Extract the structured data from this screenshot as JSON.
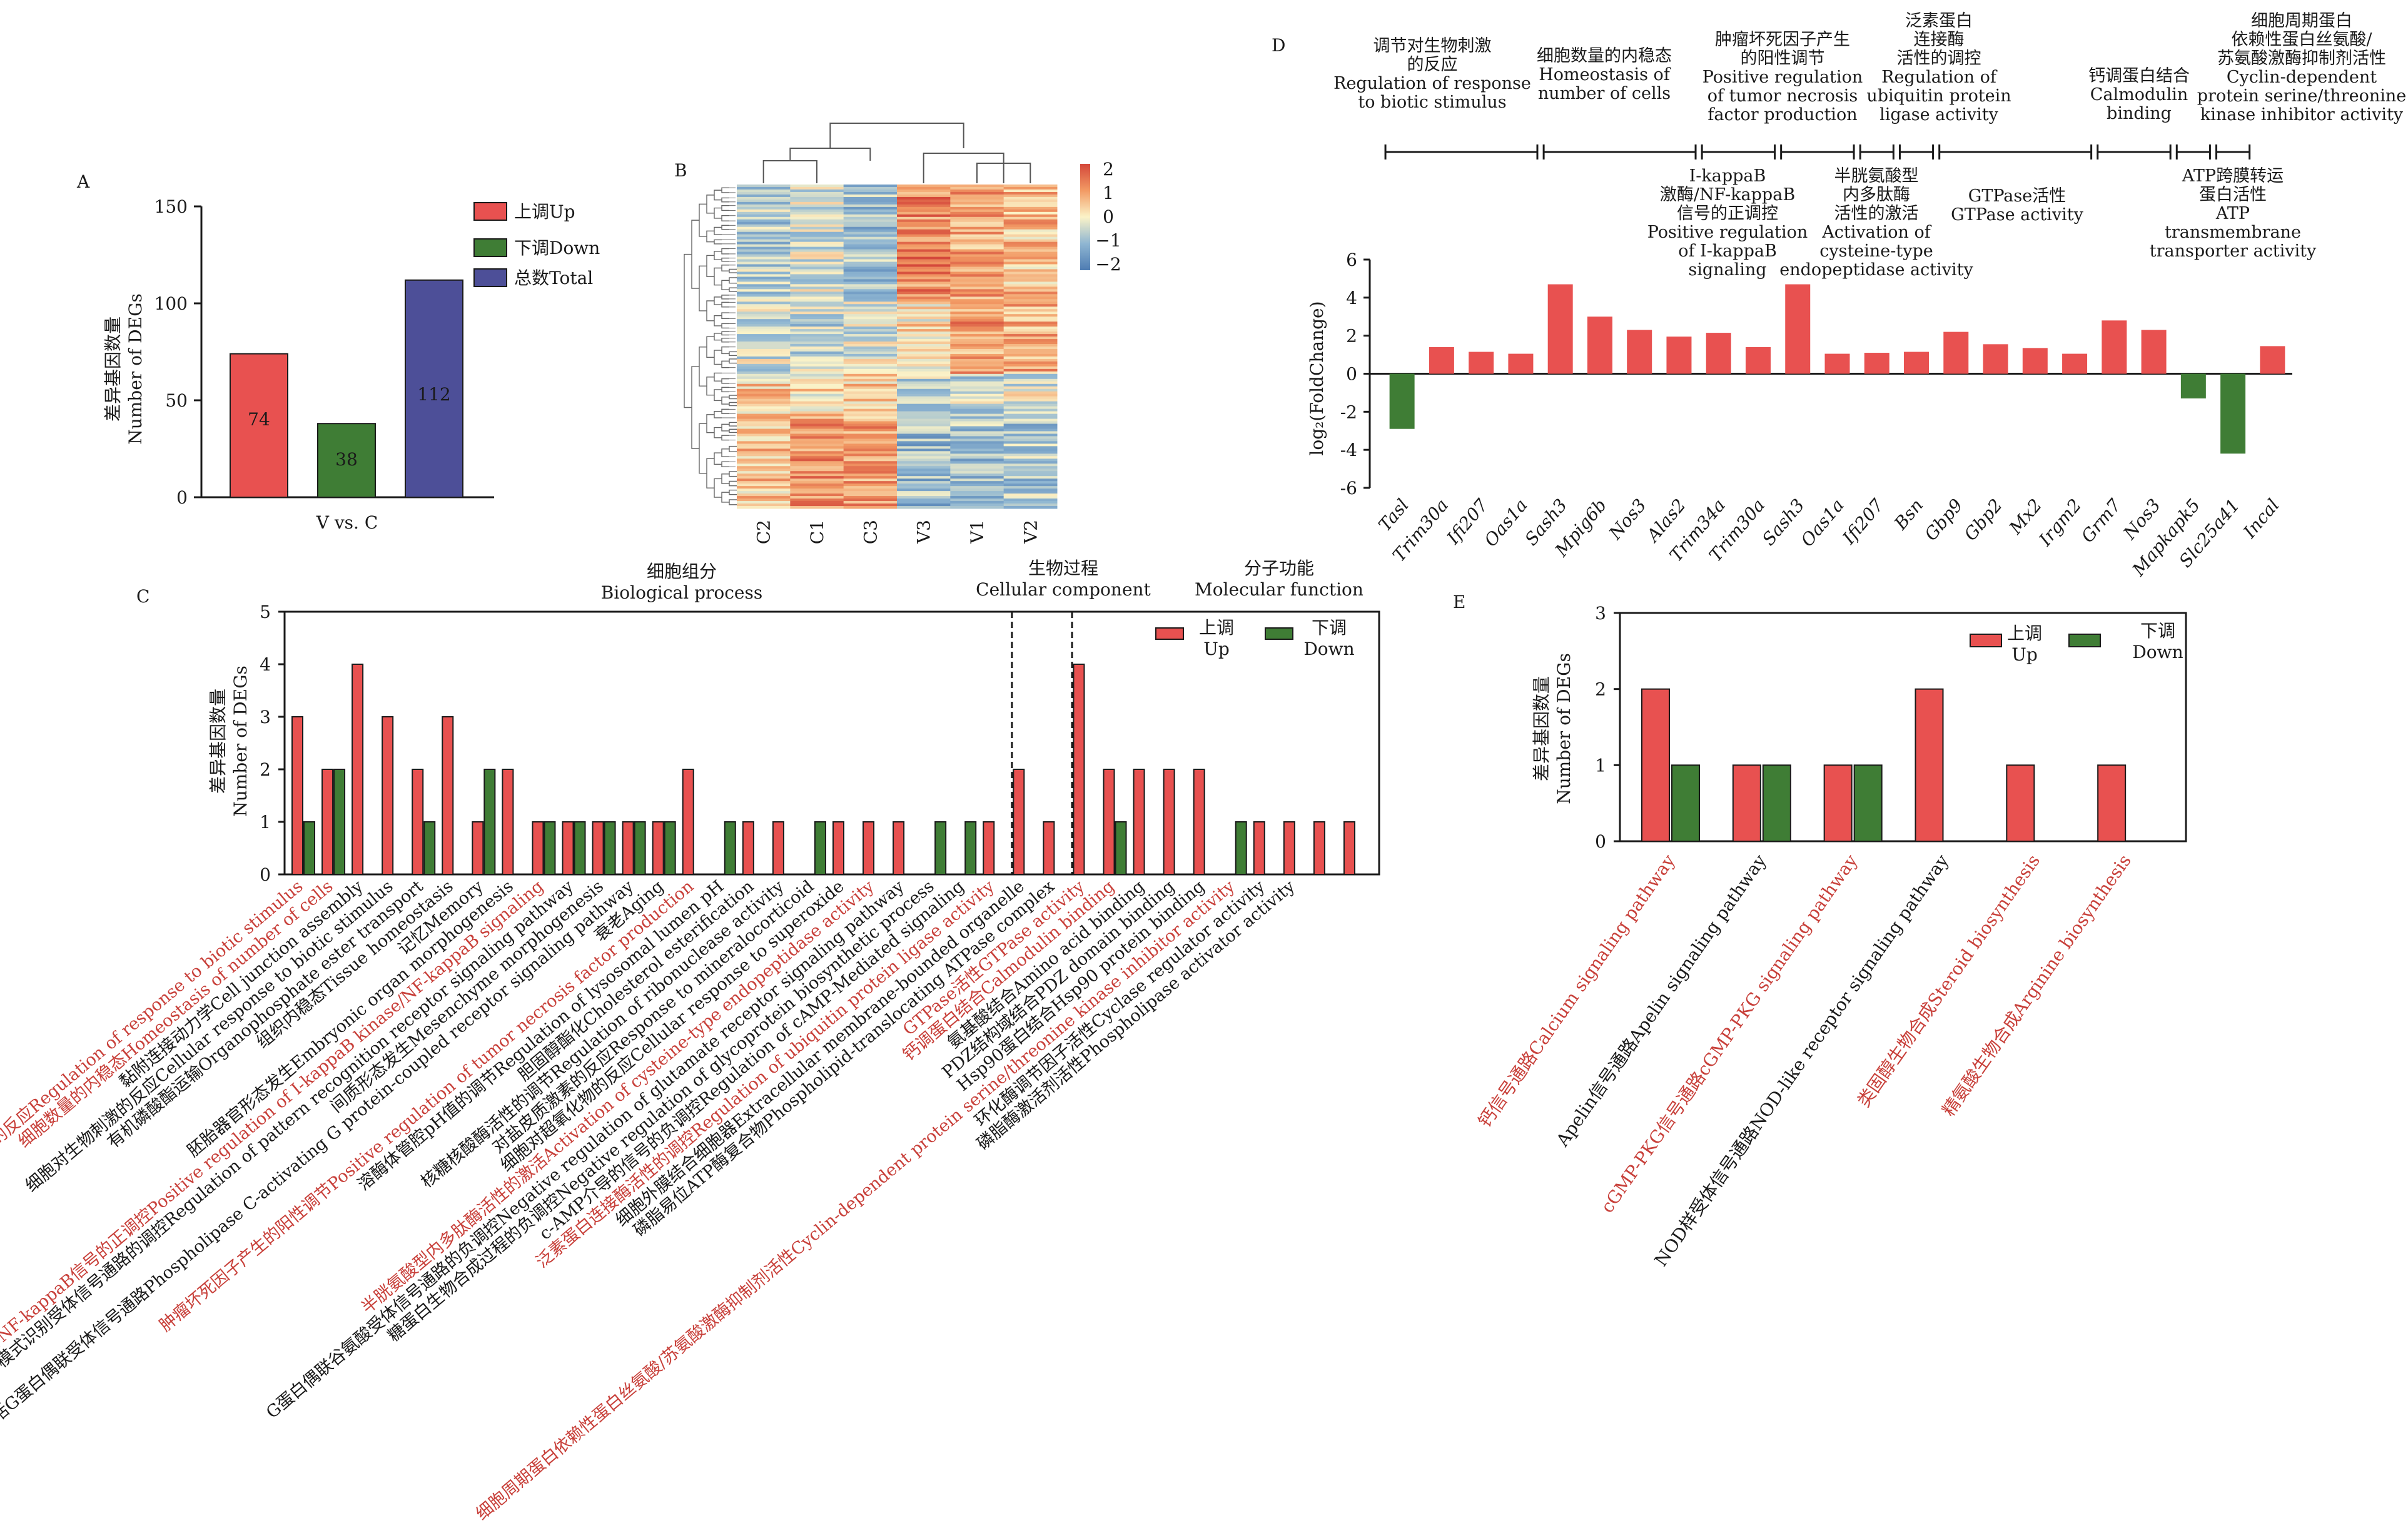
{
  "colors": {
    "up": "#e85150",
    "down": "#3f7d35",
    "total": "#4d4f98",
    "red_text": "#c8403a",
    "axis": "#1a1a1a"
  },
  "panels": {
    "A": {
      "label": "A",
      "ylabel_cn": "差异基因数量",
      "ylabel_en": "Number of DEGs",
      "xlabel": "V vs. C",
      "legend": [
        "上调Up",
        "下调Down",
        "总数Total"
      ]
    },
    "B": {
      "label": "B",
      "legend_ticks": [
        "2",
        "1",
        "0",
        "−1",
        "−2"
      ]
    },
    "C": {
      "label": "C",
      "ylabel_cn": "差异基因数量",
      "ylabel_en": "Number of DEGs",
      "group_titles": [
        {
          "cn": "细胞组分",
          "en": "Biological process"
        },
        {
          "cn": "生物过程",
          "en": "Cellular component"
        },
        {
          "cn": "分子功能",
          "en": "Molecular function"
        }
      ],
      "legend_up": [
        "上调",
        "Up"
      ],
      "legend_down": [
        "下调",
        "Down"
      ]
    },
    "D": {
      "label": "D",
      "ylabel": "log₂(FoldChange)",
      "annotations_top": [
        [
          "调节对生物刺激",
          "的反应",
          "Regulation of response",
          "to biotic stimulus"
        ],
        [
          "细胞数量的内稳态",
          "Homeostasis of",
          "number of cells"
        ],
        [
          "肿瘤坏死因子产生",
          "的阳性调节",
          "Positive regulation",
          "of tumor necrosis",
          "factor production"
        ],
        [
          "泛素蛋白",
          "连接酶",
          "活性的调控",
          "Regulation of",
          "ubiquitin protein",
          "ligase activity"
        ],
        [
          "钙调蛋白结合",
          "Calmodulin",
          "binding"
        ],
        [
          "细胞周期蛋白",
          "依赖性蛋白丝氨酸/",
          "苏氨酸激酶抑制剂活性",
          "Cyclin-dependent",
          "protein serine/threonine",
          "kinase inhibitor activity"
        ]
      ],
      "annotations_bottom": [
        [
          "Ⅰ-kappaB",
          "激酶/NF-kappaB",
          "信号的正调控",
          "Positive regulation",
          "of Ⅰ-kappaB",
          "signaling"
        ],
        [
          "半胱氨酸型",
          "内多肽酶",
          "活性的激活",
          "Activation of",
          "cysteine-type",
          "endopeptidase activity"
        ],
        [
          "GTPase活性",
          "GTPase activity"
        ],
        [
          "ATP跨膜转运",
          "蛋白活性",
          "ATP",
          "transmembrane",
          "transporter activity"
        ]
      ]
    },
    "E": {
      "label": "E",
      "ylabel_cn": "差异基因数量",
      "ylabel_en": "Number of DEGs",
      "legend_up": [
        "上调",
        "Up"
      ],
      "legend_down": [
        "下调",
        "Down"
      ]
    }
  },
  "chart_data": [
    {
      "panel": "A",
      "type": "bar",
      "categories": [
        "上调Up",
        "下调Down",
        "总数Total"
      ],
      "values": [
        74,
        38,
        112
      ],
      "value_labels": [
        "74",
        "38",
        "112"
      ],
      "xlabel": "V vs. C",
      "ylabel": "差异基因数量 Number of DEGs",
      "ylim": [
        0,
        150
      ],
      "yticks": [
        0,
        50,
        100,
        150
      ]
    },
    {
      "panel": "B",
      "type": "heatmap",
      "columns": [
        "C2",
        "C1",
        "C3",
        "V3",
        "V1",
        "V2"
      ],
      "legend_range": [
        -2,
        2
      ]
    },
    {
      "panel": "C",
      "type": "bar",
      "ylim": [
        0,
        5
      ],
      "yticks": [
        0,
        1,
        2,
        3,
        4,
        5
      ],
      "categories": [
        {
          "en": "Regulation of response to biotic stimulus",
          "cn": "调节对生物刺激的反应",
          "red": true,
          "up": 3,
          "down": 1
        },
        {
          "en": "Homeostasis of number of cells",
          "cn": "细胞数量的内稳态",
          "red": true,
          "up": 2,
          "down": 2
        },
        {
          "en": "Cell junction assembly",
          "cn": "黏附连接动力学",
          "red": false,
          "up": 4,
          "down": 0
        },
        {
          "en": "Cellular response to biotic stimulus",
          "cn": "细胞对生物刺激的反应",
          "red": false,
          "up": 3,
          "down": 0
        },
        {
          "en": "Organophosphate ester transport",
          "cn": "有机磷酸酯运输",
          "red": false,
          "up": 2,
          "down": 1
        },
        {
          "en": "Tissue homeostasis",
          "cn": "组织内稳态",
          "red": false,
          "up": 3,
          "down": 0
        },
        {
          "en": "Memory",
          "cn": "记忆",
          "red": false,
          "up": 1,
          "down": 2
        },
        {
          "en": "Embryonic organ morphogenesis",
          "cn": "胚胎器官形态发生",
          "red": false,
          "up": 2,
          "down": 0
        },
        {
          "en": "Positive regulation of Ⅰ-kappaB kinase/NF-kappaB signaling",
          "cn": "Ⅰ-kappaB激酶/NF-kappaB信号的正调控",
          "red": true,
          "up": 1,
          "down": 1
        },
        {
          "en": "Regulation of pattern recognition receptor signaling pathway",
          "cn": "模式识别受体信号通路的调控",
          "red": false,
          "up": 1,
          "down": 1
        },
        {
          "en": "Mesenchyme morphogenesis",
          "cn": "间质形态发生",
          "red": false,
          "up": 1,
          "down": 1
        },
        {
          "en": "Phospholipase C-activating G protein-coupled receptor signaling pathway",
          "cn": "磷脂酶C激活G蛋白偶联受体信号通路",
          "red": false,
          "up": 1,
          "down": 1
        },
        {
          "en": "Aging",
          "cn": "衰老",
          "red": false,
          "up": 1,
          "down": 1
        },
        {
          "en": "Positive regulation of tumor necrosis factor production",
          "cn": "肿瘤坏死因子产生的阳性调节",
          "red": true,
          "up": 2,
          "down": 0
        },
        {
          "en": "Regulation of lysosomal lumen pH",
          "cn": "溶酶体管腔pH值的调节",
          "red": false,
          "up": 0,
          "down": 1
        },
        {
          "en": "Cholesterol esterification",
          "cn": "胆固醇酯化",
          "red": false,
          "up": 1,
          "down": 0
        },
        {
          "en": "Regulation of ribonuclease activity",
          "cn": "核糖核酸酶活性的调节",
          "red": false,
          "up": 1,
          "down": 0
        },
        {
          "en": "Response to mineralocorticoid",
          "cn": "对盐皮质激素的反应",
          "red": false,
          "up": 0,
          "down": 1
        },
        {
          "en": "Cellular response to superoxide",
          "cn": "细胞对超氧化物的反应",
          "red": false,
          "up": 1,
          "down": 0
        },
        {
          "en": "Activation of cysteine-type endopeptidase activity",
          "cn": "半胱氨酸型内多肽酶活性的激活",
          "red": true,
          "up": 1,
          "down": 0
        },
        {
          "en": "Negative regulation of glutamate receptor signaling pathway",
          "cn": "G蛋白偶联谷氨酸受体信号通路的负调控",
          "red": false,
          "up": 1,
          "down": 0
        },
        {
          "en": "Negative regulation of glycoprotein biosynthetic process",
          "cn": "糖蛋白生物合成过程的负调控",
          "red": false,
          "up": 0,
          "down": 1
        },
        {
          "en": "Regulation of cAMP-Mediated signaling",
          "cn": "c-AMP介导的信号的负调控",
          "red": false,
          "up": 0,
          "down": 1
        },
        {
          "en": "Regulation of ubiquitin protein ligase activity",
          "cn": "泛素蛋白连接酶活性的调控",
          "red": true,
          "up": 1,
          "down": 0
        },
        {
          "en": "Extracellular membrane-bounded organelle",
          "cn": "细胞外膜结合细胞器",
          "red": false,
          "up": 2,
          "down": 0
        },
        {
          "en": "Phospholipid-translocating ATPase complex",
          "cn": "磷脂易位ATP酶复合物",
          "red": false,
          "up": 1,
          "down": 0
        },
        {
          "en": "GTPase activity",
          "cn": "GTPase活性",
          "red": true,
          "up": 4,
          "down": 0
        },
        {
          "en": "Calmodulin binding",
          "cn": "钙调蛋白结合",
          "red": true,
          "up": 2,
          "down": 1
        },
        {
          "en": "Amino acid binding",
          "cn": "氨基酸结合",
          "red": false,
          "up": 2,
          "down": 0
        },
        {
          "en": "PDZ domain binding",
          "cn": "PDZ结构域结合",
          "red": false,
          "up": 2,
          "down": 0
        },
        {
          "en": "Hsp90 protein binding",
          "cn": "Hsp90蛋白结合",
          "red": false,
          "up": 2,
          "down": 0
        },
        {
          "en": "Cyclin-dependent protein serine/threonine kinase inhibitor activity",
          "cn": "细胞周期蛋白依赖性蛋白丝氨酸/苏氨酸激酶抑制剂活性",
          "red": true,
          "up": 0,
          "down": 1
        },
        {
          "en": "Cyclase regulator activity",
          "cn": "环化酶调节因子活性",
          "red": false,
          "up": 1,
          "down": 0
        },
        {
          "en": "Phospholipase activator activity",
          "cn": "磷脂酶激活剂活性",
          "red": false,
          "up": 1,
          "down": 0
        },
        {
          "en": "",
          "cn": "",
          "red": false,
          "up": 1,
          "down": 0
        },
        {
          "en": "",
          "cn": "",
          "red": false,
          "up": 1,
          "down": 0
        }
      ],
      "group_bounds": [
        24,
        26,
        36
      ]
    },
    {
      "panel": "D",
      "type": "bar",
      "ylabel": "log2(FoldChange)",
      "ylim": [
        -6,
        6
      ],
      "yticks": [
        -6,
        -4,
        -2,
        0,
        2,
        4,
        6
      ],
      "categories": [
        "Tasl",
        "Trim30a",
        "Ifi207",
        "Oas1a",
        "Sash3",
        "Mpig6b",
        "Nos3",
        "Alas2",
        "Trim34a",
        "Trim30a",
        "Sash3",
        "Oas1a",
        "Ifi207",
        "Bsn",
        "Gbp9",
        "Gbp2",
        "Mx2",
        "Irgm2",
        "Grm7",
        "Nos3",
        "Mapkapk5",
        "Slc25a41",
        "Incal"
      ],
      "values": [
        -2.9,
        1.4,
        1.15,
        1.05,
        4.7,
        3.0,
        2.3,
        1.95,
        2.15,
        1.4,
        4.7,
        1.05,
        1.1,
        1.15,
        2.2,
        1.55,
        1.35,
        1.05,
        2.8,
        2.3,
        -1.3,
        -4.2,
        1.45
      ]
    },
    {
      "panel": "E",
      "type": "bar",
      "ylim": [
        0,
        3
      ],
      "yticks": [
        0,
        1,
        2,
        3
      ],
      "categories": [
        {
          "cn": "钙信号通路",
          "en": "Calcium signaling pathway",
          "red": true,
          "up": 2,
          "down": 1
        },
        {
          "cn": "Apelin信号通路",
          "en": "Apelin signaling pathway",
          "red": false,
          "up": 1,
          "down": 1
        },
        {
          "cn": "cGMP-PKG信号通路",
          "en": "cGMP-PKG signaling pathway",
          "red": true,
          "up": 1,
          "down": 1
        },
        {
          "cn": "NOD样受体信号通路",
          "en": "NOD-like receptor signaling pathway",
          "red": false,
          "up": 2,
          "down": 0
        },
        {
          "cn": "类固醇生物合成",
          "en": "Steroid biosynthesis",
          "red": true,
          "up": 1,
          "down": 0
        },
        {
          "cn": "精氨酸生物合成",
          "en": "Arginine biosynthesis",
          "red": true,
          "up": 1,
          "down": 0
        }
      ]
    }
  ]
}
